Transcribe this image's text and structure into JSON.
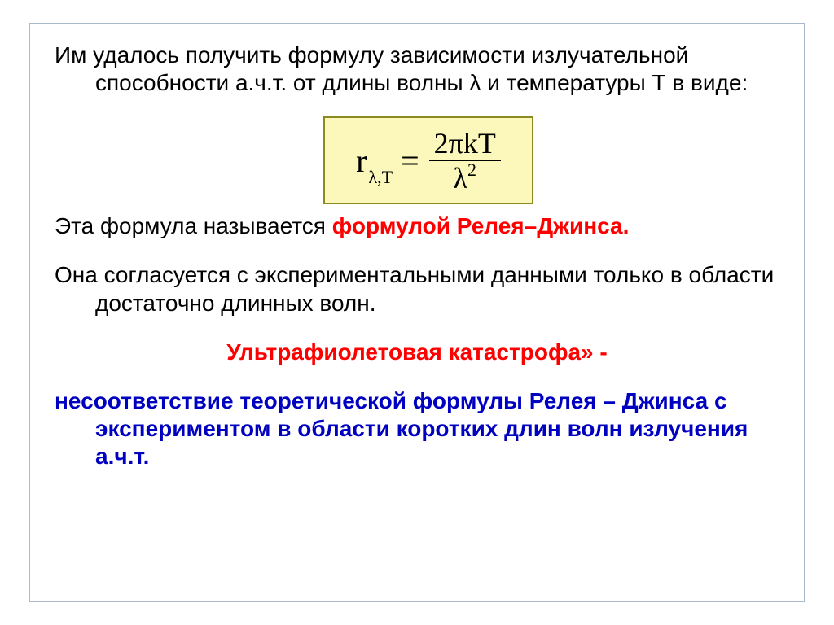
{
  "colors": {
    "background": "#ffffff",
    "frame_border": "#a9b8ca",
    "text_black": "#000000",
    "text_red": "#ff0000",
    "text_blue": "#0000c0",
    "formula_bg": "#fcf8bb",
    "formula_border": "#8a8a1f"
  },
  "typography": {
    "body_font": "Arial",
    "body_size_pt": 21,
    "formula_font": "Times New Roman",
    "formula_size_pt": 30
  },
  "para1": {
    "text": "Им удалось получить формулу зависимости излучательной способности а.ч.т. от длины волны λ и температуры Т в виде:"
  },
  "formula": {
    "lhs_main": "r",
    "lhs_sub": "λ,T",
    "eq": "=",
    "numerator": "2πkT",
    "denom_base": "λ",
    "denom_exp": "2"
  },
  "para2": {
    "prefix": "Эта формула называется ",
    "highlight": "формулой Релея–Джинса."
  },
  "para3": {
    "text": "Она согласуется с экспериментальными данными только в области достаточно длинных волн."
  },
  "para4": {
    "text": "Ультрафиолетовая катастрофа» -"
  },
  "para5": {
    "text": "несоответствие теоретической формулы Релея – Джинса с экспериментом в области коротких длин волн излучения а.ч.т."
  }
}
